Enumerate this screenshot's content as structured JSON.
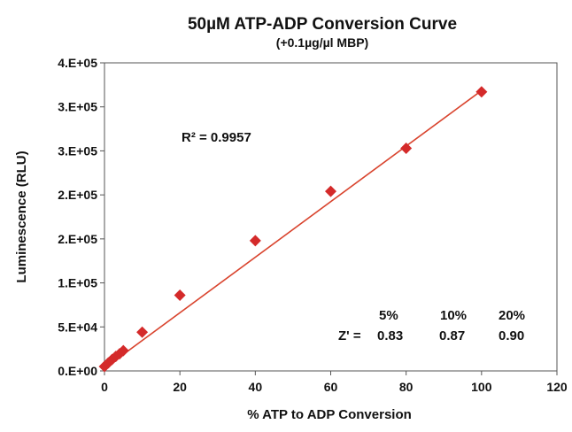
{
  "chart_data": {
    "type": "scatter",
    "title": "50µM ATP-ADP Conversion Curve",
    "subtitle": "(+0.1µg/µl MBP)",
    "xlabel": "% ATP to ADP Conversion",
    "ylabel": "Luminescence (RLU)",
    "xlim": [
      0,
      120
    ],
    "ylim": [
      0,
      350000
    ],
    "x_ticks": [
      0,
      20,
      40,
      60,
      80,
      100,
      120
    ],
    "y_ticks": [
      0,
      50000,
      100000,
      150000,
      200000,
      250000,
      300000,
      350000
    ],
    "y_tick_labels": [
      "0.E+00",
      "5.E+04",
      "1.E+05",
      "2.E+05",
      "2.E+05",
      "3.E+05",
      "3.E+05",
      "4.E+05"
    ],
    "grid": false,
    "marker_color": "#d42a2a",
    "line_color": "#d9442e",
    "series": [
      {
        "points": [
          {
            "x": 0,
            "y": 5000
          },
          {
            "x": 1,
            "y": 9000
          },
          {
            "x": 2,
            "y": 13000
          },
          {
            "x": 3,
            "y": 16500
          },
          {
            "x": 4,
            "y": 19500
          },
          {
            "x": 5,
            "y": 23000
          },
          {
            "x": 10,
            "y": 44000
          },
          {
            "x": 20,
            "y": 86000
          },
          {
            "x": 40,
            "y": 148000
          },
          {
            "x": 60,
            "y": 204000
          },
          {
            "x": 80,
            "y": 253000
          },
          {
            "x": 100,
            "y": 317000
          }
        ]
      }
    ],
    "trendline": {
      "x": [
        0,
        100
      ],
      "y": [
        3000,
        318500
      ]
    },
    "annotations": {
      "r_squared": "R² = 0.9957",
      "zprime_label": "Z' =",
      "zprime_headers": [
        "5%",
        "10%",
        "20%"
      ],
      "zprime_values": [
        "0.83",
        "0.87",
        "0.90"
      ]
    }
  }
}
